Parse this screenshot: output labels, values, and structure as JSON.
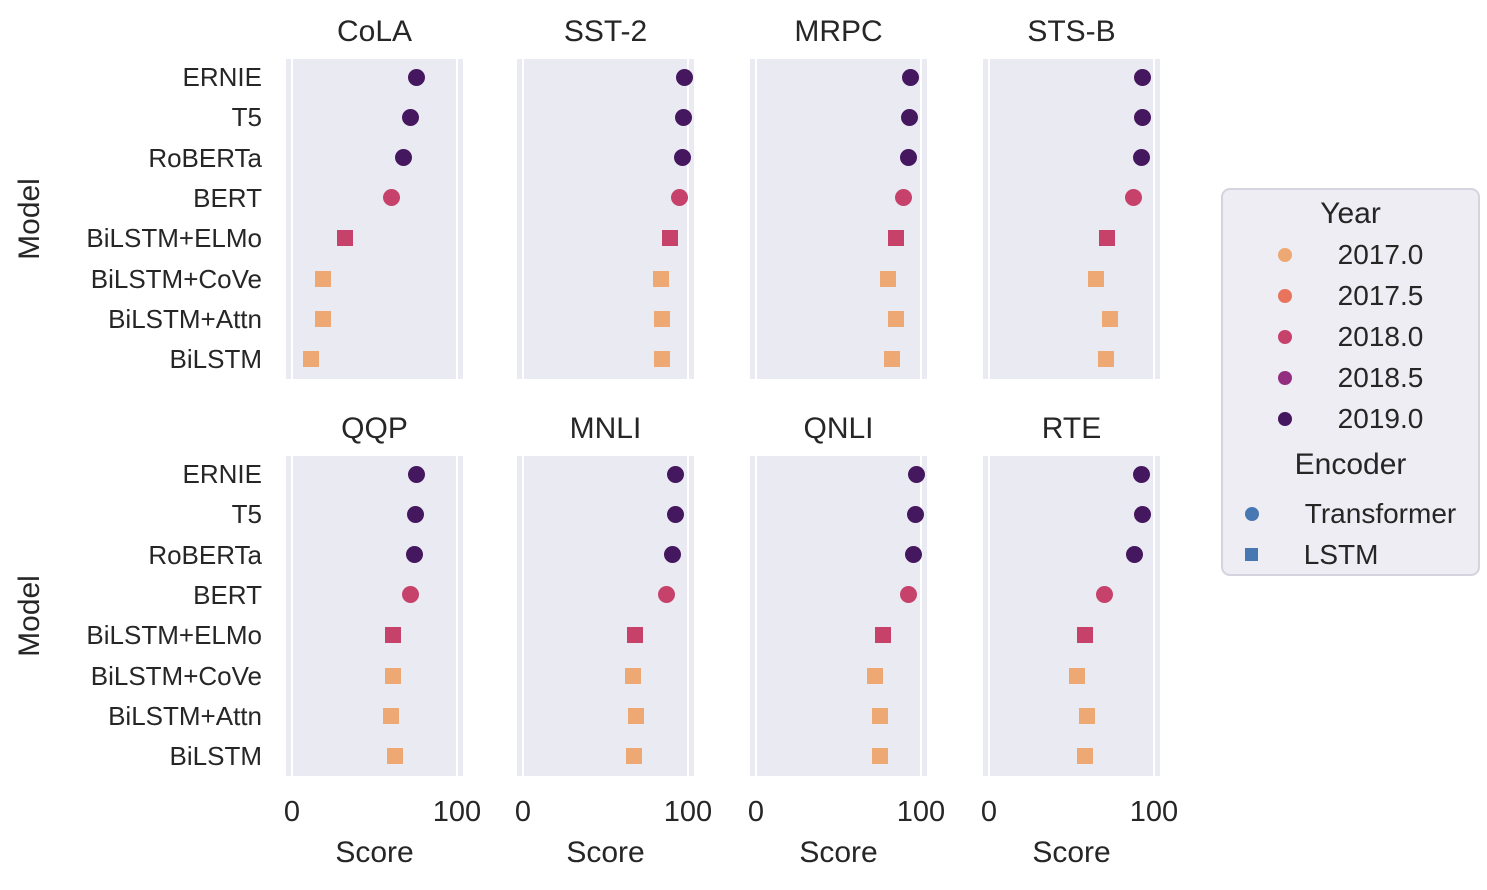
{
  "chart_data": {
    "type": "scatter",
    "layout_hint": "faceted dot plot, 2 rows x 4 cols, shared axes, grid on (white gridlines at x=0 and x=100), legend right",
    "tasks": [
      "CoLA",
      "SST-2",
      "MRPC",
      "STS-B",
      "QQP",
      "MNLI",
      "QNLI",
      "RTE"
    ],
    "models": [
      "ERNIE",
      "T5",
      "RoBERTa",
      "BERT",
      "BiLSTM+ELMo",
      "BiLSTM+CoVe",
      "BiLSTM+Attn",
      "BiLSTM"
    ],
    "model_year": {
      "ERNIE": 2019,
      "T5": 2019,
      "RoBERTa": 2019,
      "BERT": 2018,
      "BiLSTM+ELMo": 2018,
      "BiLSTM+CoVe": 2017,
      "BiLSTM+Attn": 2017,
      "BiLSTM": 2017
    },
    "model_encoder": {
      "ERNIE": "Transformer",
      "T5": "Transformer",
      "RoBERTa": "Transformer",
      "BERT": "Transformer",
      "BiLSTM+ELMo": "LSTM",
      "BiLSTM+CoVe": "LSTM",
      "BiLSTM+Attn": "LSTM",
      "BiLSTM": "LSTM"
    },
    "scores": {
      "CoLA": [
        75.5,
        71.6,
        67.8,
        60.5,
        32.1,
        18.5,
        18.6,
        11.6
      ],
      "SST-2": [
        97.8,
        97.5,
        96.7,
        94.9,
        89.3,
        83.5,
        84.3,
        84.2
      ],
      "MRPC": [
        93.9,
        92.8,
        92.3,
        89.3,
        84.7,
        80.0,
        84.9,
        82.3
      ],
      "STS-B": [
        93.0,
        93.1,
        92.2,
        87.6,
        71.5,
        65.1,
        73.5,
        70.9
      ],
      "QQP": [
        75.2,
        75.1,
        74.3,
        72.1,
        61.1,
        61.3,
        60.3,
        62.4
      ],
      "MNLI": [
        92.3,
        92.2,
        90.8,
        86.7,
        67.9,
        66.5,
        68.5,
        67.1
      ],
      "QNLI": [
        97.3,
        96.9,
        95.4,
        92.7,
        76.7,
        72.3,
        75.3,
        75.3
      ],
      "RTE": [
        92.6,
        92.8,
        88.2,
        70.1,
        58.3,
        53.5,
        59.3,
        58.3
      ]
    },
    "xlabel": "Score",
    "ylabel": "Model",
    "xlim": [
      -4,
      104
    ],
    "xticks": [
      0,
      100
    ],
    "xtick_labels": [
      "0",
      "100"
    ],
    "year_colors": {
      "2017": "#eda874",
      "2018": "#c6426b",
      "2019": "#45175f"
    },
    "marker_by_encoder": {
      "Transformer": "circle",
      "LSTM": "square"
    },
    "panel_bg": "#eaeaf2",
    "text_color": "#262626"
  },
  "legend": {
    "year": {
      "title": "Year",
      "entries": [
        {
          "label": "2017.0",
          "color": "#eda874",
          "shape": "circle"
        },
        {
          "label": "2017.5",
          "color": "#e9745e",
          "shape": "circle"
        },
        {
          "label": "2018.0",
          "color": "#c6426b",
          "shape": "circle"
        },
        {
          "label": "2018.5",
          "color": "#932d80",
          "shape": "circle"
        },
        {
          "label": "2019.0",
          "color": "#45175f",
          "shape": "circle"
        }
      ]
    },
    "encoder": {
      "title": "Encoder",
      "color": "#4878b2",
      "entries": [
        {
          "label": "Transformer",
          "shape": "circle"
        },
        {
          "label": "LSTM",
          "shape": "square"
        }
      ]
    }
  }
}
